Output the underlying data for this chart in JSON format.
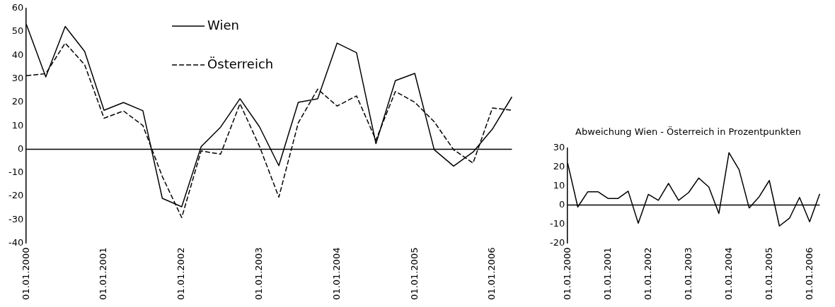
{
  "chart_data": [
    {
      "type": "line",
      "categories": [
        "01.01.2000",
        null,
        null,
        null,
        "01.01.2001",
        null,
        null,
        null,
        "01.01.2002",
        null,
        null,
        null,
        "01.01.2003",
        null,
        null,
        null,
        "01.01.2004",
        null,
        null,
        null,
        "01.01.2005",
        null,
        null,
        null,
        "01.01.2006",
        null
      ],
      "series": [
        {
          "name": "Wien",
          "color": "#000000",
          "line_style": "solid",
          "values": [
            53.2,
            30.8,
            52.3,
            41.7,
            16.6,
            19.9,
            16.4,
            -20.9,
            -24.5,
            1.1,
            9.4,
            21.5,
            9.6,
            -7.0,
            20.0,
            21.5,
            45.2,
            41.1,
            2.4,
            29.2,
            32.3,
            -0.2,
            -7.2,
            -1.2,
            8.6,
            22.3
          ]
        },
        {
          "name": "Österreich",
          "color": "#000000",
          "line_style": "dashed",
          "values": [
            31.3,
            32.2,
            45.2,
            36.0,
            13.2,
            16.3,
            10.1,
            -11.6,
            -29.1,
            -0.7,
            -2.1,
            19.4,
            1.3,
            -20.4,
            11.2,
            25.6,
            18.4,
            22.7,
            3.9,
            24.6,
            20.0,
            11.7,
            -0.2,
            -5.9,
            17.6,
            16.6
          ]
        }
      ],
      "ylim": [
        -40,
        60
      ],
      "yticks": [
        -40,
        -30,
        -20,
        -10,
        0,
        10,
        20,
        30,
        40,
        50,
        60
      ],
      "ref_lines": [
        {
          "axis": "y",
          "value": 0,
          "color": "#000000"
        }
      ],
      "grid": false,
      "legend": "top",
      "marker": "none"
    },
    {
      "type": "line",
      "title": "Abweichung Wien - Österreich in Prozentpunkten",
      "categories": [
        "01.01.2000",
        null,
        null,
        null,
        "01.01.2001",
        null,
        null,
        null,
        "01.01.2002",
        null,
        null,
        null,
        "01.01.2003",
        null,
        null,
        null,
        "01.01.2004",
        null,
        null,
        null,
        "01.01.2005",
        null,
        null,
        null,
        "01.01.2006",
        null
      ],
      "series": [
        {
          "color": "#000000",
          "line_style": "solid",
          "values": [
            22.0,
            -1.0,
            7.0,
            7.0,
            3.5,
            3.5,
            7.3,
            -9.5,
            5.6,
            2.5,
            11.4,
            2.5,
            6.6,
            14.2,
            9.5,
            -4.4,
            27.5,
            18.6,
            -1.5,
            4.4,
            12.9,
            -11.0,
            -6.9,
            4.0,
            -8.8,
            5.9
          ]
        }
      ],
      "ylim": [
        -20,
        30
      ],
      "yticks": [
        -20,
        -10,
        0,
        10,
        20,
        30
      ],
      "ref_lines": [
        {
          "axis": "y",
          "value": 0,
          "color": "#000000"
        }
      ],
      "grid": false,
      "legend": false,
      "marker": "none"
    }
  ]
}
